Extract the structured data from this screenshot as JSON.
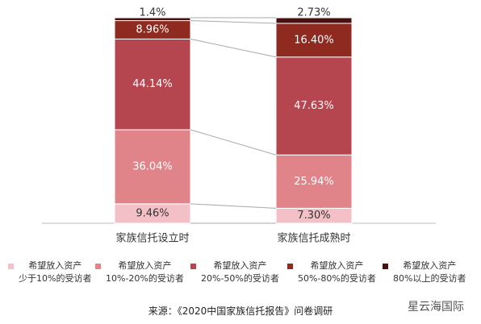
{
  "chart_data": {
    "type": "stacked-bar",
    "categories": [
      "家族信托设立时",
      "家族信托成熟时"
    ],
    "series": [
      {
        "name": "希望放入资产\n少于10%的受访者",
        "color": "#f4c0c8",
        "values": [
          9.46,
          7.3
        ],
        "value_labels": [
          "9.46%",
          "7.30%"
        ]
      },
      {
        "name": "希望放入资产\n10%-20%的受访者",
        "color": "#e0848a",
        "values": [
          36.04,
          25.94
        ],
        "value_labels": [
          "36.04%",
          "25.94%"
        ]
      },
      {
        "name": "希望放入资产\n20%-50%的受访者",
        "color": "#b5454f",
        "values": [
          44.14,
          47.63
        ],
        "value_labels": [
          "44.14%",
          "47.63%"
        ]
      },
      {
        "name": "希望放入资产\n50%-80%的受访者",
        "color": "#8f2a20",
        "values": [
          8.96,
          16.4
        ],
        "value_labels": [
          "8.96%",
          "16.40%"
        ]
      },
      {
        "name": "希望放入资产\n80%以上的受访者",
        "color": "#4a1010",
        "values": [
          1.4,
          2.73
        ],
        "value_labels": [
          "1.4%",
          "2.73%"
        ]
      }
    ]
  },
  "source": "来源：《2020中国家族信托报告》问卷调研",
  "watermark": "星云海国际"
}
